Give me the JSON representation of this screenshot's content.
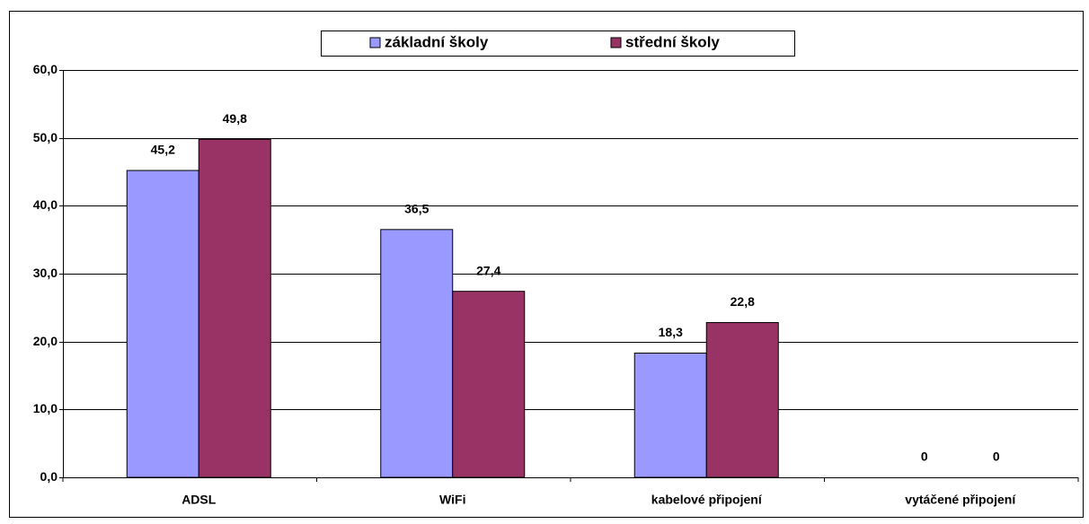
{
  "chart_data": {
    "type": "bar",
    "categories": [
      "ADSL",
      "WiFi",
      "kabelové připojení",
      "vytáčené připojení"
    ],
    "series": [
      {
        "name": "základní školy",
        "color": "#9999ff",
        "values": [
          45.2,
          36.5,
          18.3,
          0
        ],
        "value_labels": [
          "45,2",
          "36,5",
          "18,3",
          "0"
        ]
      },
      {
        "name": "střední školy",
        "color": "#993366",
        "values": [
          49.8,
          27.4,
          22.8,
          0
        ],
        "value_labels": [
          "49,8",
          "27,4",
          "22,8",
          "0"
        ]
      }
    ],
    "ylim": [
      0,
      60
    ],
    "yticks": [
      {
        "value": 0,
        "label": "0,0"
      },
      {
        "value": 10,
        "label": "10,0"
      },
      {
        "value": 20,
        "label": "20,0"
      },
      {
        "value": 30,
        "label": "30,0"
      },
      {
        "value": 40,
        "label": "40,0"
      },
      {
        "value": 50,
        "label": "50,0"
      },
      {
        "value": 60,
        "label": "60,0"
      }
    ],
    "grid": true,
    "legend": "top"
  }
}
